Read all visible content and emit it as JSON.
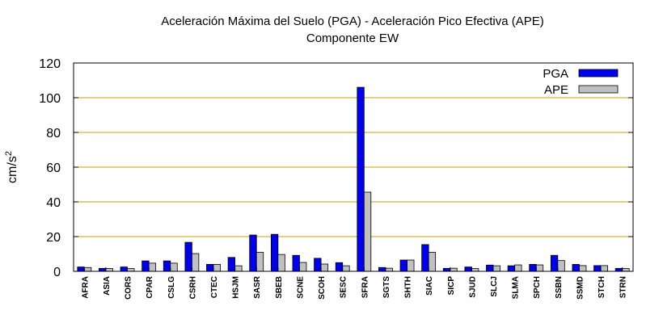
{
  "chart_data": {
    "type": "bar",
    "title": "Aceleración Máxima del Suelo (PGA) -  Aceleración Pico Efectiva (APE)",
    "subtitle": "Componente EW",
    "xlabel": "",
    "ylabel": "cm/s",
    "ylabel_superscript": "2",
    "ylim": [
      0,
      120
    ],
    "yticks": [
      0,
      20,
      40,
      60,
      80,
      100,
      120
    ],
    "grid": true,
    "legend_position": "top-right",
    "colors": {
      "PGA": "#0000ee",
      "APE": "#c0c0c0",
      "grid": "#c8a000",
      "outline": "#000000"
    },
    "categories": [
      "AFRA",
      "ASIA",
      "CORS",
      "CPAR",
      "CSLG",
      "CSRH",
      "CTEC",
      "HSJM",
      "SASR",
      "SBEB",
      "SCNE",
      "SCOH",
      "SESC",
      "SFRA",
      "SGTS",
      "SHTH",
      "SIAC",
      "SICP",
      "SJUD",
      "SLCJ",
      "SLMA",
      "SPCH",
      "SSBN",
      "SSMD",
      "STCH",
      "STRN"
    ],
    "series": [
      {
        "name": "PGA",
        "values": [
          2.5,
          1.7,
          2.5,
          6,
          6,
          16.7,
          4,
          8,
          20.9,
          21.3,
          9.2,
          7.5,
          5,
          106,
          2.2,
          6.5,
          15.4,
          1.7,
          2.5,
          3.6,
          3.2,
          4,
          9.2,
          4,
          3.3,
          1.7
        ]
      },
      {
        "name": "APE",
        "values": [
          2.2,
          1.6,
          1.6,
          4.7,
          4.7,
          10.2,
          4,
          3.2,
          11,
          9.7,
          5.1,
          4.2,
          3.2,
          45.6,
          1.8,
          6.5,
          11,
          1.8,
          1.6,
          3.2,
          3.7,
          3.7,
          6.2,
          3.3,
          3.3,
          1.6
        ]
      }
    ]
  }
}
